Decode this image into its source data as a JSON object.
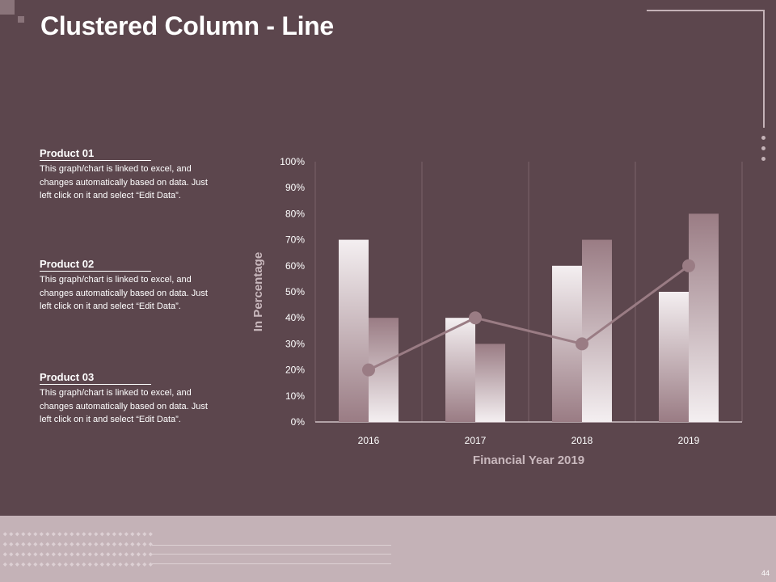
{
  "slide": {
    "title": "Clustered Column - Line",
    "page_number": "44"
  },
  "products": [
    {
      "title": "Product 01",
      "description": "This graph/chart is linked to excel, and changes automatically based on data. Just left click on it and select “Edit Data”."
    },
    {
      "title": "Product 02",
      "description": "This graph/chart is linked to excel, and changes automatically based on data. Just left click on it and select “Edit Data”."
    },
    {
      "title": "Product 03",
      "description": "This graph/chart is linked to excel, and changes automatically based on data. Just left click on it and select “Edit Data”."
    }
  ],
  "colors": {
    "background": "#5c464d",
    "footer": "#c4b2b7",
    "bar_light": "#f4eff1",
    "bar_mauve": "#9a7c84",
    "line": "#9a7c84"
  },
  "chart_data": {
    "type": "bar",
    "categories": [
      "2016",
      "2017",
      "2018",
      "2019"
    ],
    "series": [
      {
        "type": "bar",
        "values": [
          70,
          40,
          60,
          50
        ]
      },
      {
        "type": "bar",
        "values": [
          40,
          30,
          70,
          80
        ]
      },
      {
        "type": "line",
        "values": [
          20,
          40,
          30,
          60
        ]
      }
    ],
    "xlabel": "Financial Year 2019",
    "ylabel": "In Percentage",
    "ylim": [
      0,
      100
    ],
    "yticks": [
      "0%",
      "10%",
      "20%",
      "30%",
      "40%",
      "50%",
      "60%",
      "70%",
      "80%",
      "90%",
      "100%"
    ],
    "grid": "vertical",
    "legend": "none"
  }
}
